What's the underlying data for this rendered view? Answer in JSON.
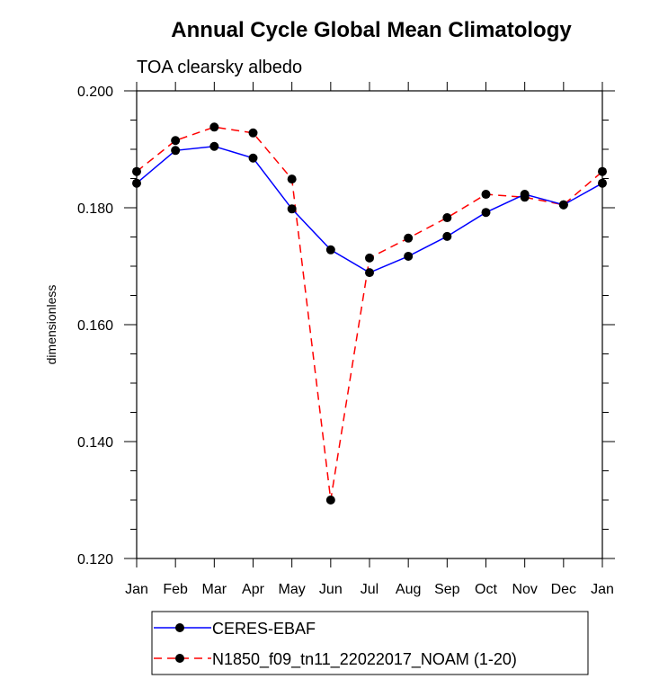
{
  "chart_data": {
    "type": "line",
    "title": "Annual Cycle Global Mean Climatology",
    "subtitle": "TOA clearsky albedo",
    "xlabel": "",
    "ylabel": "dimensionless",
    "categories": [
      "Jan",
      "Feb",
      "Mar",
      "Apr",
      "May",
      "Jun",
      "Jul",
      "Aug",
      "Sep",
      "Oct",
      "Nov",
      "Dec",
      "Jan"
    ],
    "ylim": [
      0.12,
      0.2
    ],
    "yticks": [
      "0.120",
      "0.140",
      "0.160",
      "0.180",
      "0.200"
    ],
    "ytick_values": [
      0.12,
      0.14,
      0.16,
      0.18,
      0.2
    ],
    "grid": false,
    "legend_position": "bottom-center",
    "series": [
      {
        "name": "CERES-EBAF",
        "color": "#0000ff",
        "line_style": "solid",
        "marker": "filled-circle",
        "values": [
          0.1842,
          0.1898,
          0.1905,
          0.1885,
          0.1798,
          0.1728,
          0.1689,
          0.1717,
          0.1751,
          0.1792,
          0.1823,
          0.1805,
          0.1842
        ]
      },
      {
        "name": "N1850_f09_tn11_22022017_NOAM (1-20)",
        "color": "#ff0000",
        "line_style": "dashed",
        "marker": "filled-circle",
        "values": [
          0.1862,
          0.1915,
          0.1938,
          0.1928,
          0.1849,
          0.13,
          0.1714,
          0.1748,
          0.1783,
          0.1823,
          0.1818,
          0.1805,
          0.1862
        ]
      }
    ]
  }
}
